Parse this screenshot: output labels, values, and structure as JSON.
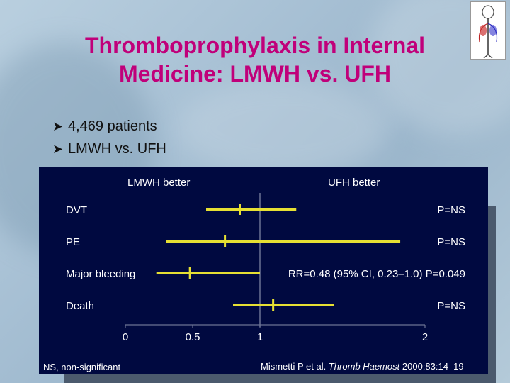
{
  "slide": {
    "title_line1": "Thromboprophylaxis in Internal",
    "title_line2": "Medicine: LMWH vs. UFH",
    "bullets": [
      "4,469 patients",
      "LMWH vs. UFH"
    ]
  },
  "chart_data": {
    "type": "forest",
    "left_label": "LMWH better",
    "right_label": "UFH better",
    "x_ticks": [
      "0",
      "0.5",
      "1",
      "2"
    ],
    "reference_value": 1,
    "rows": [
      {
        "label": "DVT",
        "point": 0.85,
        "ci": [
          0.6,
          1.22
        ],
        "stat": "P=NS"
      },
      {
        "label": "PE",
        "point": 0.74,
        "ci": [
          0.3,
          1.85
        ],
        "stat": "P=NS"
      },
      {
        "label": "Major bleeding",
        "point": 0.48,
        "ci": [
          0.23,
          1.0
        ],
        "stat": "RR=0.48 (95% CI, 0.23–1.0) P=0.049"
      },
      {
        "label": "Death",
        "point": 1.08,
        "ci": [
          0.8,
          1.45
        ],
        "stat": "P=NS"
      }
    ],
    "footnote_left": "NS, non-significant",
    "citation_plain": "Mismetti P et al. ",
    "citation_italic": "Thromb Haemost",
    "citation_rest": " 2000;83:14–19",
    "colors": {
      "ci_line": "#e6e033",
      "text": "#ffffff",
      "background": "#000940"
    }
  }
}
